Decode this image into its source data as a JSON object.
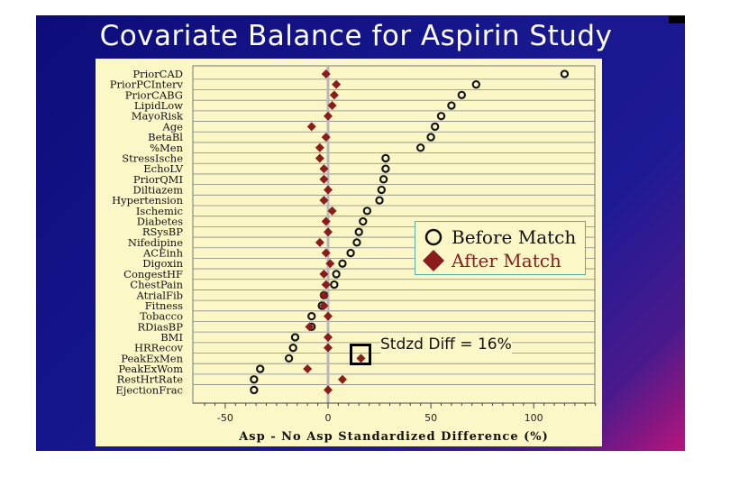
{
  "slide": {
    "title": "Covariate Balance for Aspirin Study"
  },
  "legend": {
    "before_label": "Before Match",
    "after_label": "After Match"
  },
  "annotation": {
    "label": "Stdzd Diff = 16%",
    "value": 16
  },
  "colors": {
    "before": "#111111",
    "after": "#8c1c1c",
    "zero_line": "#b8b8b8",
    "grid": "#8a8a8a"
  },
  "chart_data": {
    "type": "scatter",
    "title": "Covariate Balance for Aspirin Study",
    "xlabel": "Asp - No Asp Standardized Difference (%)",
    "xlim": [
      -60,
      130
    ],
    "xticks": [
      -50,
      0,
      50,
      100
    ],
    "categories": [
      "PriorCAD",
      "PriorPCInterv",
      "PriorCABG",
      "LipidLow",
      "MayoRisk",
      "Age",
      "BetaBl",
      "%Men",
      "StressIsche",
      "EchoLV",
      "PriorQMI",
      "Diltiazem",
      "Hypertension",
      "Ischemic",
      "Diabetes",
      "RSysBP",
      "Nifedipine",
      "ACEinh",
      "Digoxin",
      "CongestHF",
      "ChestPain",
      "AtrialFib",
      "Fitness",
      "Tobacco",
      "RDiasBP",
      "BMI",
      "HRRecov",
      "PeakExMen",
      "PeakExWom",
      "RestHrtRate",
      "EjectionFrac"
    ],
    "series": [
      {
        "name": "Before Match",
        "marker": "circle",
        "values": [
          115,
          72,
          65,
          60,
          55,
          52,
          50,
          45,
          28,
          28,
          27,
          26,
          25,
          19,
          17,
          15,
          14,
          11,
          7,
          4,
          3,
          -2,
          -3,
          -8,
          -8,
          -16,
          -17,
          -19,
          -33,
          -36,
          -36
        ]
      },
      {
        "name": "After Match",
        "marker": "diamond",
        "values": [
          -1,
          4,
          3,
          2,
          0,
          -8,
          -1,
          -4,
          -4,
          -2,
          -2,
          0,
          -2,
          2,
          -1,
          0,
          -4,
          -1,
          1,
          -2,
          -1,
          -2,
          -2,
          0,
          -9,
          0,
          0,
          16,
          -10,
          7,
          0
        ]
      }
    ],
    "grid": "horizontal",
    "legend_position": "right"
  }
}
